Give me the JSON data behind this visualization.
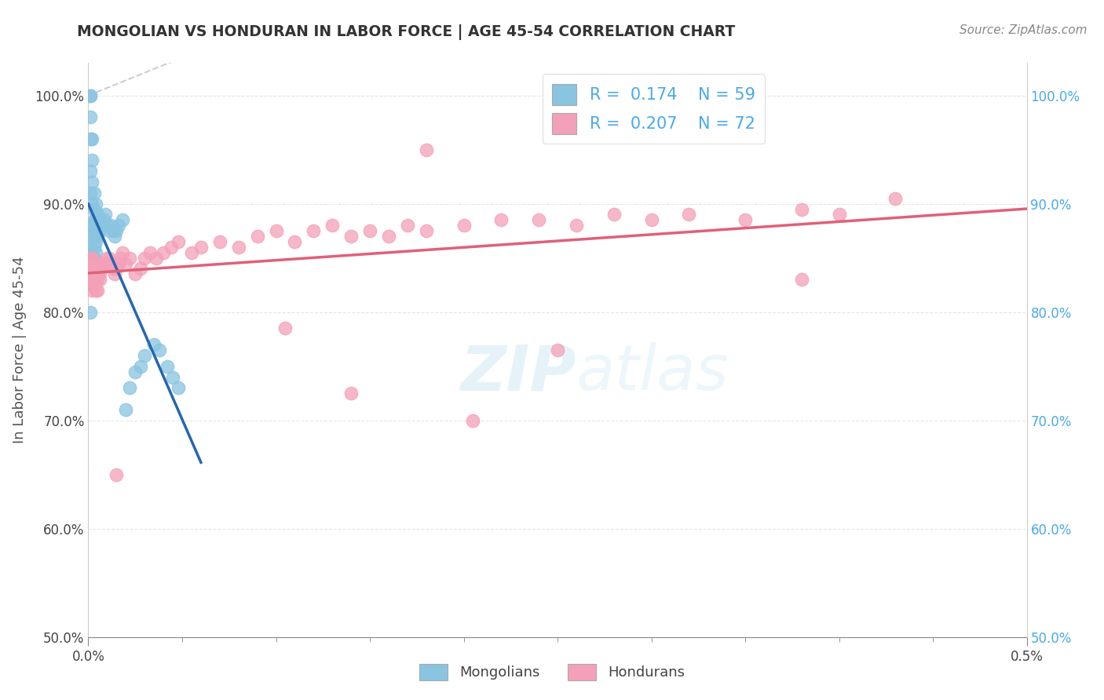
{
  "title": "MONGOLIAN VS HONDURAN IN LABOR FORCE | AGE 45-54 CORRELATION CHART",
  "source": "Source: ZipAtlas.com",
  "ylabel": "In Labor Force | Age 45-54",
  "xlim": [
    0.0,
    0.5
  ],
  "ylim": [
    50.0,
    103.0
  ],
  "yticks": [
    50.0,
    60.0,
    70.0,
    80.0,
    90.0,
    100.0
  ],
  "yticklabels": [
    "50.0%",
    "60.0%",
    "70.0%",
    "80.0%",
    "90.0%",
    "100.0%"
  ],
  "right_yticklabels": [
    "50.0%",
    "60.0%",
    "70.0%",
    "80.0%",
    "90.0%",
    "100.0%"
  ],
  "mongolian_color": "#89c4e1",
  "honduran_color": "#f4a0b8",
  "mongolian_line_color": "#2566b0",
  "honduran_line_color": "#e0607a",
  "ref_line_color": "#b8b8b8",
  "legend_R_mongolian": "0.174",
  "legend_N_mongolian": "59",
  "legend_R_honduran": "0.207",
  "legend_N_honduran": "72",
  "mongolian_x": [
    0.001,
    0.001,
    0.001,
    0.001,
    0.001,
    0.001,
    0.001,
    0.001,
    0.001,
    0.001,
    0.002,
    0.002,
    0.002,
    0.002,
    0.002,
    0.002,
    0.002,
    0.002,
    0.002,
    0.002,
    0.003,
    0.003,
    0.003,
    0.003,
    0.003,
    0.003,
    0.003,
    0.003,
    0.004,
    0.004,
    0.004,
    0.004,
    0.004,
    0.005,
    0.005,
    0.005,
    0.006,
    0.006,
    0.007,
    0.008,
    0.009,
    0.01,
    0.011,
    0.012,
    0.013,
    0.014,
    0.015,
    0.016,
    0.018,
    0.02,
    0.022,
    0.025,
    0.028,
    0.03,
    0.035,
    0.038,
    0.042,
    0.045,
    0.048
  ],
  "mongolian_y": [
    100.0,
    100.0,
    98.0,
    96.0,
    93.0,
    91.0,
    88.0,
    86.0,
    84.0,
    80.0,
    96.0,
    94.0,
    92.0,
    90.0,
    88.0,
    87.0,
    85.5,
    84.5,
    83.5,
    82.5,
    91.0,
    89.5,
    88.5,
    87.0,
    86.0,
    85.0,
    84.0,
    83.0,
    90.0,
    88.5,
    87.5,
    86.5,
    85.5,
    89.0,
    88.0,
    87.0,
    88.5,
    87.5,
    88.0,
    88.5,
    89.0,
    88.0,
    87.5,
    88.0,
    87.5,
    87.0,
    87.5,
    88.0,
    88.5,
    71.0,
    73.0,
    74.5,
    75.0,
    76.0,
    77.0,
    76.5,
    75.0,
    74.0,
    73.0
  ],
  "honduran_x": [
    0.001,
    0.001,
    0.001,
    0.002,
    0.002,
    0.002,
    0.002,
    0.003,
    0.003,
    0.003,
    0.004,
    0.004,
    0.004,
    0.005,
    0.005,
    0.005,
    0.006,
    0.006,
    0.007,
    0.008,
    0.009,
    0.01,
    0.011,
    0.012,
    0.013,
    0.014,
    0.015,
    0.016,
    0.017,
    0.018,
    0.02,
    0.022,
    0.025,
    0.028,
    0.03,
    0.033,
    0.036,
    0.04,
    0.044,
    0.048,
    0.055,
    0.06,
    0.07,
    0.08,
    0.09,
    0.1,
    0.11,
    0.12,
    0.13,
    0.14,
    0.15,
    0.16,
    0.17,
    0.18,
    0.2,
    0.22,
    0.24,
    0.26,
    0.28,
    0.3,
    0.32,
    0.35,
    0.38,
    0.4,
    0.43,
    0.105,
    0.205,
    0.015,
    0.25,
    0.18,
    0.38,
    0.14
  ],
  "honduran_y": [
    85.0,
    84.0,
    83.0,
    85.0,
    84.0,
    83.0,
    82.0,
    84.5,
    83.5,
    82.5,
    84.0,
    83.0,
    82.0,
    83.5,
    83.0,
    82.0,
    83.5,
    83.0,
    84.0,
    84.5,
    84.5,
    85.0,
    85.0,
    84.5,
    84.0,
    83.5,
    84.0,
    84.5,
    85.0,
    85.5,
    84.5,
    85.0,
    83.5,
    84.0,
    85.0,
    85.5,
    85.0,
    85.5,
    86.0,
    86.5,
    85.5,
    86.0,
    86.5,
    86.0,
    87.0,
    87.5,
    86.5,
    87.5,
    88.0,
    87.0,
    87.5,
    87.0,
    88.0,
    87.5,
    88.0,
    88.5,
    88.5,
    88.0,
    89.0,
    88.5,
    89.0,
    88.5,
    89.5,
    89.0,
    90.5,
    78.5,
    70.0,
    65.0,
    76.5,
    95.0,
    83.0,
    72.5
  ]
}
